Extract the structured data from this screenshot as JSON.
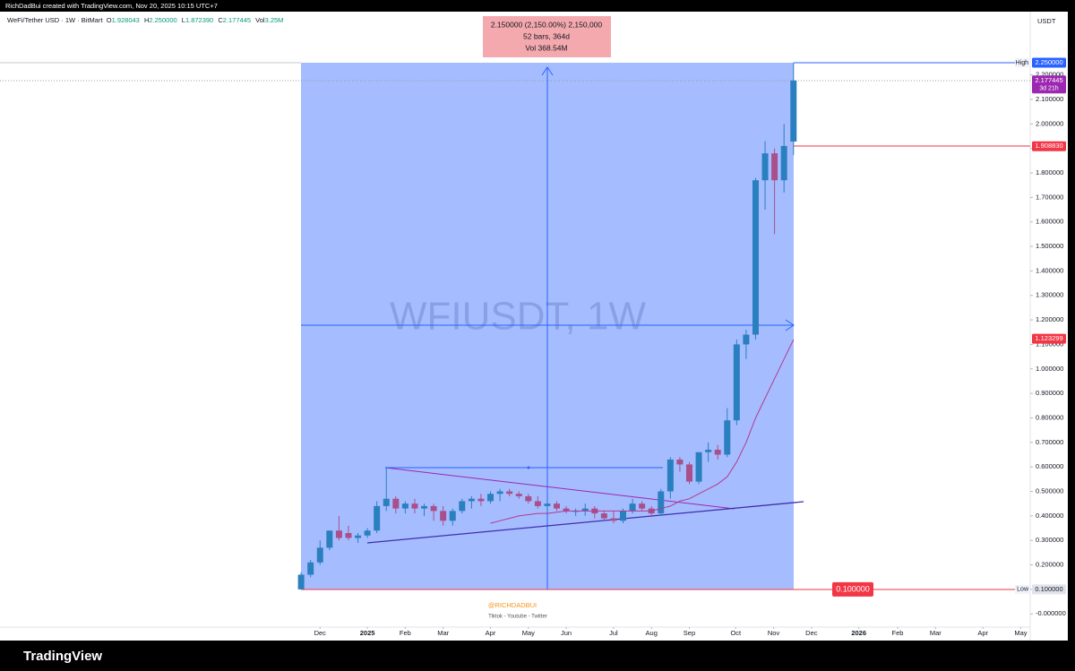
{
  "header": {
    "credit": "RichDadBui created with TradingView.com, Nov 20, 2025 10:15 UTC+7",
    "symbol": "WeFi/Tether USD · 1W · BitMart",
    "ohlc": [
      {
        "key": "O",
        "value": "1.928043"
      },
      {
        "key": "H",
        "value": "2.250000"
      },
      {
        "key": "L",
        "value": "1.872390"
      },
      {
        "key": "C",
        "value": "2.177445"
      },
      {
        "key": "Vol",
        "value": "3.25M"
      }
    ]
  },
  "signature": {
    "handle": "@RICHDADBUI",
    "links": "Tiktok - Youtube - Twitter"
  },
  "footer": {
    "brand": "TradingView"
  },
  "chart_data": {
    "type": "candlestick",
    "unit": "USDT",
    "watermark": "WFIUSDT, 1W",
    "up_color": "#2a7fbf",
    "down_color": "#a94f8c",
    "ohlc": [
      [
        0.1,
        0.17,
        0.1,
        0.16
      ],
      [
        0.16,
        0.22,
        0.15,
        0.21
      ],
      [
        0.21,
        0.3,
        0.2,
        0.27
      ],
      [
        0.27,
        0.34,
        0.26,
        0.34
      ],
      [
        0.34,
        0.4,
        0.3,
        0.31
      ],
      [
        0.33,
        0.36,
        0.3,
        0.31
      ],
      [
        0.31,
        0.33,
        0.29,
        0.32
      ],
      [
        0.32,
        0.35,
        0.31,
        0.34
      ],
      [
        0.34,
        0.46,
        0.33,
        0.44
      ],
      [
        0.44,
        0.6,
        0.42,
        0.47
      ],
      [
        0.47,
        0.48,
        0.41,
        0.43
      ],
      [
        0.43,
        0.46,
        0.41,
        0.45
      ],
      [
        0.45,
        0.47,
        0.41,
        0.43
      ],
      [
        0.43,
        0.45,
        0.4,
        0.44
      ],
      [
        0.44,
        0.45,
        0.38,
        0.42
      ],
      [
        0.42,
        0.44,
        0.36,
        0.38
      ],
      [
        0.38,
        0.43,
        0.36,
        0.42
      ],
      [
        0.42,
        0.47,
        0.41,
        0.46
      ],
      [
        0.46,
        0.48,
        0.43,
        0.47
      ],
      [
        0.47,
        0.49,
        0.44,
        0.46
      ],
      [
        0.46,
        0.5,
        0.45,
        0.49
      ],
      [
        0.49,
        0.51,
        0.46,
        0.5
      ],
      [
        0.5,
        0.51,
        0.48,
        0.49
      ],
      [
        0.49,
        0.5,
        0.47,
        0.48
      ],
      [
        0.48,
        0.49,
        0.45,
        0.46
      ],
      [
        0.46,
        0.48,
        0.43,
        0.44
      ],
      [
        0.44,
        0.46,
        0.41,
        0.45
      ],
      [
        0.45,
        0.46,
        0.42,
        0.43
      ],
      [
        0.43,
        0.44,
        0.41,
        0.42
      ],
      [
        0.42,
        0.43,
        0.4,
        0.42
      ],
      [
        0.42,
        0.45,
        0.4,
        0.43
      ],
      [
        0.43,
        0.44,
        0.39,
        0.41
      ],
      [
        0.41,
        0.42,
        0.38,
        0.39
      ],
      [
        0.39,
        0.42,
        0.37,
        0.38
      ],
      [
        0.38,
        0.43,
        0.37,
        0.42
      ],
      [
        0.42,
        0.47,
        0.41,
        0.45
      ],
      [
        0.45,
        0.46,
        0.42,
        0.43
      ],
      [
        0.43,
        0.44,
        0.4,
        0.41
      ],
      [
        0.41,
        0.51,
        0.4,
        0.5
      ],
      [
        0.5,
        0.64,
        0.47,
        0.63
      ],
      [
        0.63,
        0.64,
        0.58,
        0.61
      ],
      [
        0.61,
        0.62,
        0.53,
        0.54
      ],
      [
        0.54,
        0.66,
        0.53,
        0.66
      ],
      [
        0.66,
        0.7,
        0.62,
        0.67
      ],
      [
        0.67,
        0.69,
        0.63,
        0.65
      ],
      [
        0.65,
        0.84,
        0.64,
        0.79
      ],
      [
        0.79,
        1.12,
        0.77,
        1.1
      ],
      [
        1.1,
        1.16,
        1.04,
        1.14
      ],
      [
        1.14,
        1.78,
        1.12,
        1.77
      ],
      [
        1.77,
        1.93,
        1.65,
        1.88
      ],
      [
        1.88,
        1.9,
        1.55,
        1.77
      ],
      [
        1.77,
        2.0,
        1.72,
        1.91
      ],
      [
        1.928043,
        2.25,
        1.87239,
        2.177445
      ]
    ],
    "ma": {
      "color": "#b13a8f",
      "values": [
        null,
        null,
        null,
        null,
        null,
        null,
        null,
        null,
        null,
        null,
        null,
        null,
        null,
        null,
        null,
        null,
        null,
        null,
        null,
        null,
        0.37,
        0.38,
        0.39,
        0.4,
        0.405,
        0.41,
        0.41,
        0.415,
        0.42,
        0.42,
        0.42,
        0.42,
        0.42,
        0.42,
        0.42,
        0.42,
        0.42,
        0.42,
        0.43,
        0.44,
        0.46,
        0.47,
        0.49,
        0.51,
        0.53,
        0.56,
        0.62,
        0.7,
        0.8,
        0.88,
        0.96,
        1.04,
        1.12
      ]
    },
    "ylim": [
      -0.054,
      2.462
    ],
    "yticks": [
      {
        "value": 0,
        "label": "-0.000000"
      },
      {
        "value": 0.1,
        "label": "0.100000"
      },
      {
        "value": 0.2,
        "label": "0.200000"
      },
      {
        "value": 0.3,
        "label": "0.300000"
      },
      {
        "value": 0.4,
        "label": "0.400000"
      },
      {
        "value": 0.5,
        "label": "0.500000"
      },
      {
        "value": 0.6,
        "label": "0.600000"
      },
      {
        "value": 0.7,
        "label": "0.700000"
      },
      {
        "value": 0.8,
        "label": "0.800000"
      },
      {
        "value": 0.9,
        "label": "0.900000"
      },
      {
        "value": 1.0,
        "label": "1.000000"
      },
      {
        "value": 1.1,
        "label": "1.100000"
      },
      {
        "value": 1.2,
        "label": "1.200000"
      },
      {
        "value": 1.3,
        "label": "1.300000"
      },
      {
        "value": 1.4,
        "label": "1.400000"
      },
      {
        "value": 1.5,
        "label": "1.500000"
      },
      {
        "value": 1.6,
        "label": "1.600000"
      },
      {
        "value": 1.7,
        "label": "1.700000"
      },
      {
        "value": 1.8,
        "label": "1.800000"
      },
      {
        "value": 1.9,
        "label": "1.900000"
      },
      {
        "value": 2.0,
        "label": "2.000000"
      },
      {
        "value": 2.1,
        "label": "2.100000"
      },
      {
        "value": 2.2,
        "label": "2.200000"
      }
    ],
    "xlim": [
      -31.8,
      77
    ],
    "xticks": [
      {
        "value": 2,
        "label": "Dec"
      },
      {
        "value": 7,
        "label": "2025"
      },
      {
        "value": 11,
        "label": "Feb"
      },
      {
        "value": 15,
        "label": "Mar"
      },
      {
        "value": 20,
        "label": "Apr"
      },
      {
        "value": 24,
        "label": "May"
      },
      {
        "value": 28,
        "label": "Jun"
      },
      {
        "value": 33,
        "label": "Jul"
      },
      {
        "value": 37,
        "label": "Aug"
      },
      {
        "value": 41,
        "label": "Sep"
      },
      {
        "value": 45.9,
        "label": "Oct"
      },
      {
        "value": 49.9,
        "label": "Nov"
      },
      {
        "value": 53.9,
        "label": "Dec"
      },
      {
        "value": 58.9,
        "label": "2026"
      },
      {
        "value": 63,
        "label": "Feb"
      },
      {
        "value": 67,
        "label": "Mar"
      },
      {
        "value": 72,
        "label": "Apr"
      },
      {
        "value": 76,
        "label": "May"
      }
    ],
    "price_labels": [
      {
        "value": 2.25,
        "label": "2.250000",
        "tag": "High",
        "color": "#2962ff"
      },
      {
        "value": 2.177445,
        "label": "2.177445",
        "sub": "3d 21h",
        "color": "#9c27b0"
      },
      {
        "value": 1.90883,
        "label": "1.908830",
        "color": "#f23645"
      },
      {
        "value": 1.123299,
        "label": "1.123299",
        "color": "#f23645"
      },
      {
        "value": 0.1,
        "label": "0.100000",
        "tag": "Low",
        "color": "#e0e3eb"
      },
      {
        "value": 0.1,
        "label": "0.100000",
        "color": "#f23645",
        "in_plot": true
      }
    ],
    "measure": [
      "2.150000 (2,150.00%) 2,150,000",
      "52 bars, 364d",
      "Vol 368.54M"
    ]
  }
}
